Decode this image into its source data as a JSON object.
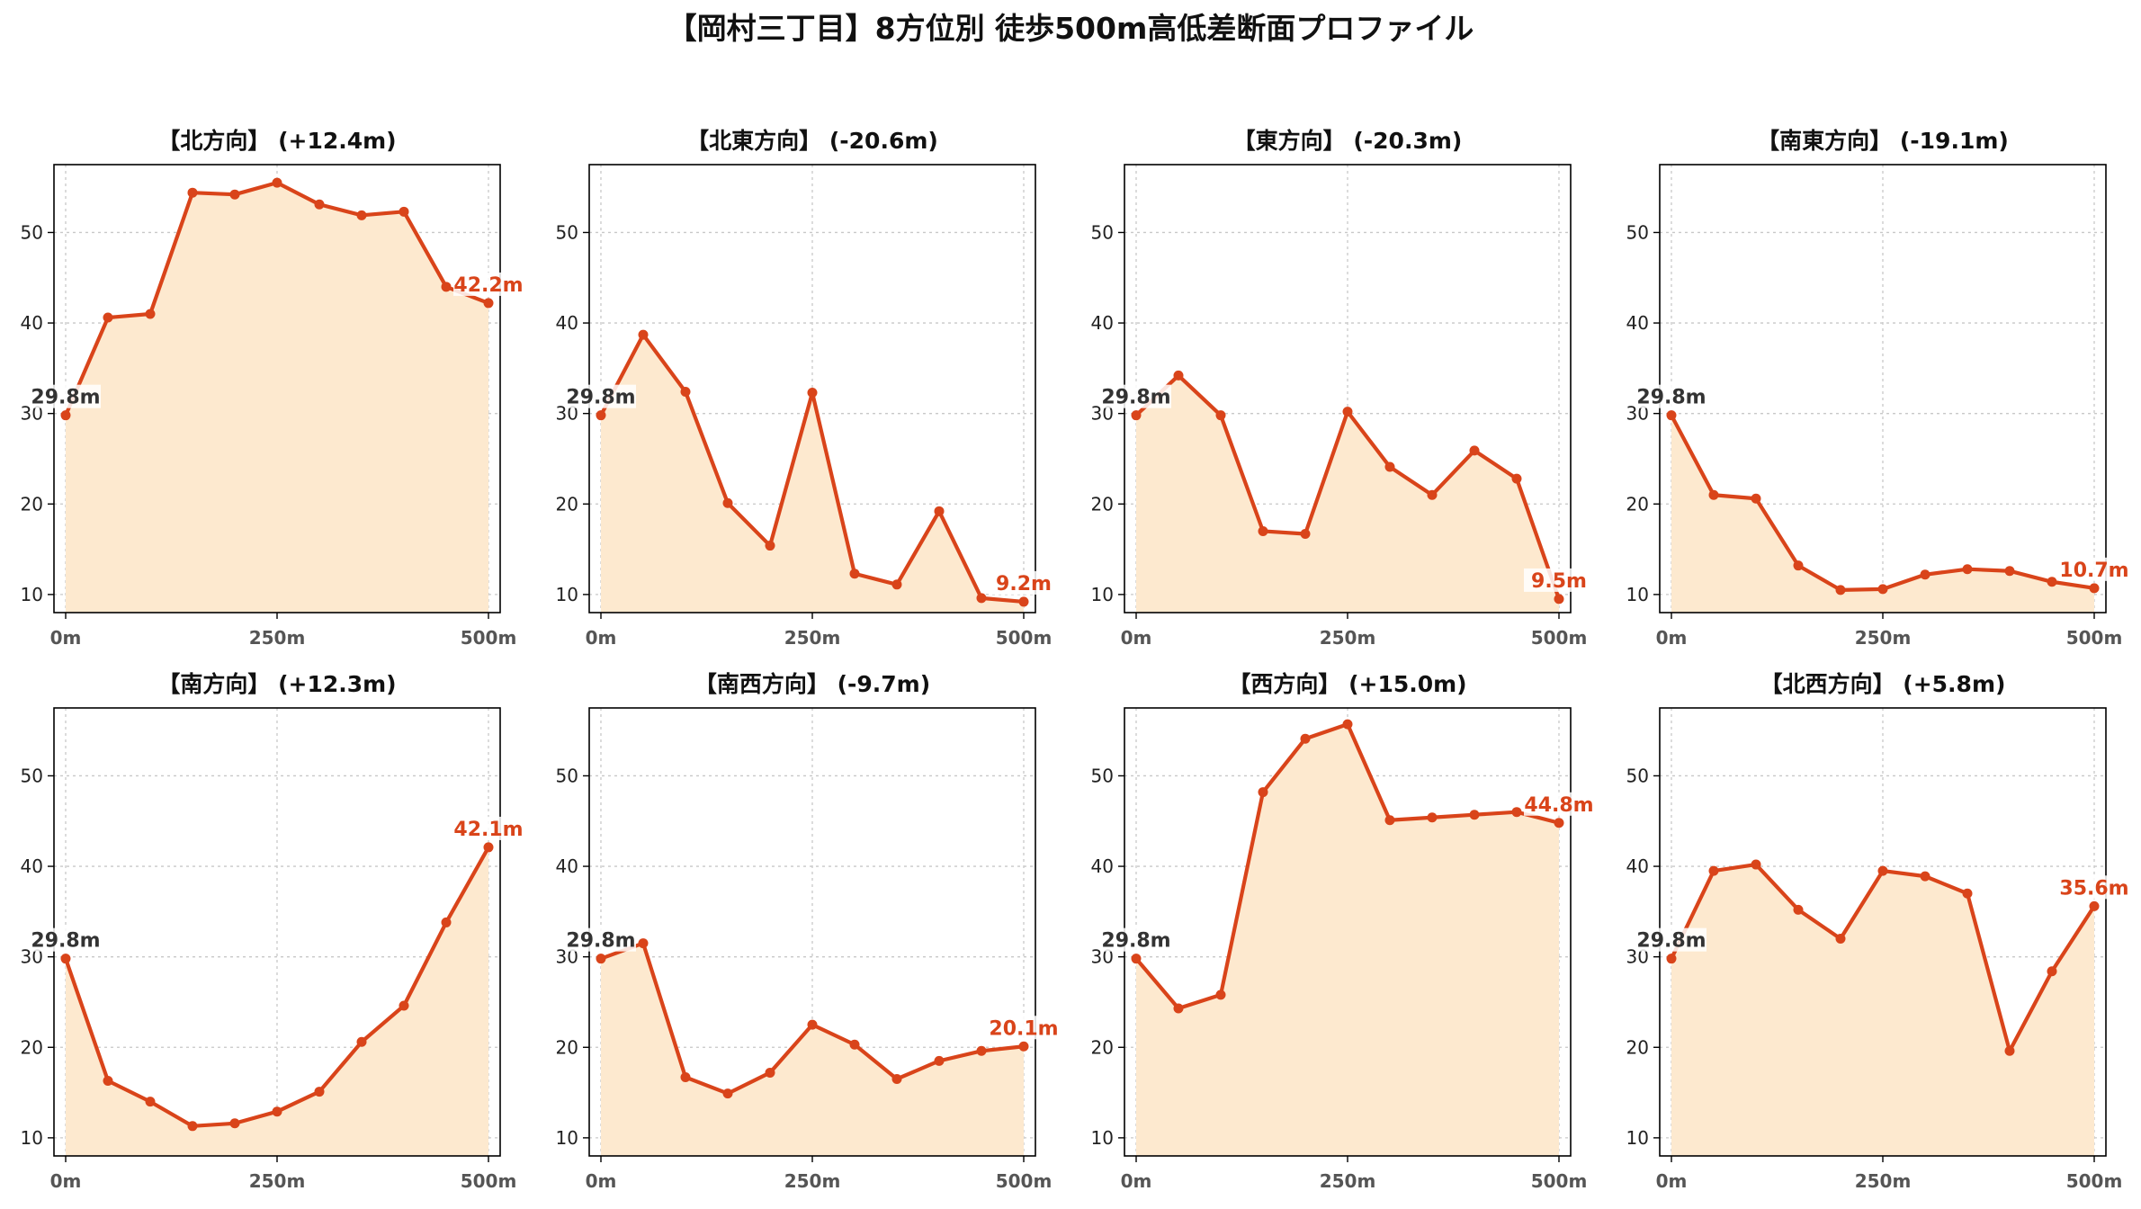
{
  "suptitle": "【岡村三丁目】8方位別 徒歩500m高低差断面プロファイル",
  "colors": {
    "line": "#d9441a",
    "fill": "#fde9cf",
    "start_label": "#333333",
    "end_label": "#d9441a",
    "grid": "#c8c8c8"
  },
  "start_label": "29.8m",
  "chart_data": [
    {
      "type": "area",
      "title": "【北方向】 (+12.4m)",
      "x": [
        0,
        50,
        100,
        150,
        200,
        250,
        300,
        350,
        400,
        450,
        500
      ],
      "y": [
        29.8,
        40.6,
        41.0,
        54.4,
        54.2,
        55.5,
        53.1,
        51.9,
        52.3,
        44.0,
        42.2
      ],
      "end_label": "42.2m",
      "xticks": [
        "0m",
        "250m",
        "500m"
      ],
      "yticks": [
        "10",
        "20",
        "30",
        "40",
        "50"
      ],
      "xlim": [
        0,
        500
      ],
      "ylim": [
        8,
        57.5
      ],
      "grid": true
    },
    {
      "type": "area",
      "title": "【北東方向】 (-20.6m)",
      "x": [
        0,
        50,
        100,
        150,
        200,
        250,
        300,
        350,
        400,
        450,
        500
      ],
      "y": [
        29.8,
        38.7,
        32.4,
        20.1,
        15.4,
        32.3,
        12.3,
        11.1,
        19.2,
        9.6,
        9.2
      ],
      "end_label": "9.2m",
      "xticks": [
        "0m",
        "250m",
        "500m"
      ],
      "yticks": [
        "10",
        "20",
        "30",
        "40",
        "50"
      ],
      "xlim": [
        0,
        500
      ],
      "ylim": [
        8,
        57.5
      ],
      "grid": true
    },
    {
      "type": "area",
      "title": "【東方向】 (-20.3m)",
      "x": [
        0,
        50,
        100,
        150,
        200,
        250,
        300,
        350,
        400,
        450,
        500
      ],
      "y": [
        29.8,
        34.2,
        29.8,
        17.0,
        16.7,
        30.2,
        24.1,
        21.0,
        25.9,
        22.8,
        9.5
      ],
      "end_label": "9.5m",
      "xticks": [
        "0m",
        "250m",
        "500m"
      ],
      "yticks": [
        "10",
        "20",
        "30",
        "40",
        "50"
      ],
      "xlim": [
        0,
        500
      ],
      "ylim": [
        8,
        57.5
      ],
      "grid": true
    },
    {
      "type": "area",
      "title": "【南東方向】 (-19.1m)",
      "x": [
        0,
        50,
        100,
        150,
        200,
        250,
        300,
        350,
        400,
        450,
        500
      ],
      "y": [
        29.8,
        21.0,
        20.6,
        13.2,
        10.5,
        10.6,
        12.2,
        12.8,
        12.6,
        11.4,
        10.7
      ],
      "end_label": "10.7m",
      "xticks": [
        "0m",
        "250m",
        "500m"
      ],
      "yticks": [
        "10",
        "20",
        "30",
        "40",
        "50"
      ],
      "xlim": [
        0,
        500
      ],
      "ylim": [
        8,
        57.5
      ],
      "grid": true
    },
    {
      "type": "area",
      "title": "【南方向】 (+12.3m)",
      "x": [
        0,
        50,
        100,
        150,
        200,
        250,
        300,
        350,
        400,
        450,
        500
      ],
      "y": [
        29.8,
        16.3,
        14.0,
        11.3,
        11.6,
        12.9,
        15.1,
        20.6,
        24.6,
        33.8,
        42.1
      ],
      "end_label": "42.1m",
      "xticks": [
        "0m",
        "250m",
        "500m"
      ],
      "yticks": [
        "10",
        "20",
        "30",
        "40",
        "50"
      ],
      "xlim": [
        0,
        500
      ],
      "ylim": [
        8,
        57.5
      ],
      "grid": true
    },
    {
      "type": "area",
      "title": "【南西方向】 (-9.7m)",
      "x": [
        0,
        50,
        100,
        150,
        200,
        250,
        300,
        350,
        400,
        450,
        500
      ],
      "y": [
        29.8,
        31.5,
        16.7,
        14.9,
        17.2,
        22.5,
        20.3,
        16.5,
        18.5,
        19.6,
        20.1
      ],
      "end_label": "20.1m",
      "xticks": [
        "0m",
        "250m",
        "500m"
      ],
      "yticks": [
        "10",
        "20",
        "30",
        "40",
        "50"
      ],
      "xlim": [
        0,
        500
      ],
      "ylim": [
        8,
        57.5
      ],
      "grid": true
    },
    {
      "type": "area",
      "title": "【西方向】 (+15.0m)",
      "x": [
        0,
        50,
        100,
        150,
        200,
        250,
        300,
        350,
        400,
        450,
        500
      ],
      "y": [
        29.8,
        24.3,
        25.8,
        48.2,
        54.1,
        55.7,
        45.1,
        45.4,
        45.7,
        46.0,
        44.8
      ],
      "end_label": "44.8m",
      "xticks": [
        "0m",
        "250m",
        "500m"
      ],
      "yticks": [
        "10",
        "20",
        "30",
        "40",
        "50"
      ],
      "xlim": [
        0,
        500
      ],
      "ylim": [
        8,
        57.5
      ],
      "grid": true
    },
    {
      "type": "area",
      "title": "【北西方向】 (+5.8m)",
      "x": [
        0,
        50,
        100,
        150,
        200,
        250,
        300,
        350,
        400,
        450,
        500
      ],
      "y": [
        29.8,
        39.5,
        40.2,
        35.2,
        32.0,
        39.5,
        38.9,
        37.0,
        19.6,
        28.4,
        35.6
      ],
      "end_label": "35.6m",
      "xticks": [
        "0m",
        "250m",
        "500m"
      ],
      "yticks": [
        "10",
        "20",
        "30",
        "40",
        "50"
      ],
      "xlim": [
        0,
        500
      ],
      "ylim": [
        8,
        57.5
      ],
      "grid": true
    }
  ]
}
